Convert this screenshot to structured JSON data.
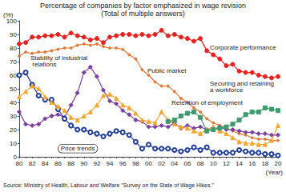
{
  "chart_data": {
    "type": "line",
    "title": "Percentage of companies by factor emphasized in wage revision",
    "subtitle": "(Total of multiple answers)",
    "x_label": "(Year)",
    "y_label": "(%)",
    "source": "Source: Ministry of Health, Labour and Welfare \"Survey on the State of Wage Hikes.\"",
    "categories": [
      "80",
      null,
      "82",
      null,
      "84",
      null,
      "86",
      null,
      "88",
      null,
      "90",
      null,
      "92",
      null,
      "94",
      null,
      "96",
      null,
      "98",
      null,
      "00",
      null,
      "02",
      null,
      "04",
      null,
      "06",
      null,
      "08",
      null,
      "10",
      null,
      "12",
      null,
      "14",
      null,
      "16",
      null,
      "18",
      null,
      "20"
    ],
    "ylim": [
      0,
      100
    ],
    "yticks": [
      0,
      10,
      20,
      30,
      40,
      50,
      60,
      70,
      80,
      90,
      100
    ],
    "grid": false,
    "series": [
      {
        "name": "Corporate performance",
        "color": "#e3231f",
        "marker": "circle",
        "values": [
          83,
          84,
          88,
          88,
          89,
          89,
          90,
          88,
          91,
          89,
          88,
          86,
          87,
          84,
          88,
          89,
          90,
          90,
          89,
          90,
          89,
          90,
          93,
          89,
          90,
          88,
          87,
          85,
          87,
          78,
          75,
          72,
          67,
          68,
          63,
          62,
          62,
          60,
          59,
          58,
          59
        ]
      },
      {
        "name": "Public market",
        "color": "#e0793a",
        "marker": "dot",
        "values": [
          74,
          77,
          76,
          77,
          77,
          78,
          79,
          80,
          80,
          82,
          83,
          82,
          83,
          81,
          80,
          80,
          79,
          75,
          72,
          64,
          60,
          55,
          52,
          52,
          48,
          43,
          40,
          36,
          33,
          28,
          25,
          23,
          21,
          19,
          17,
          16,
          14,
          13,
          13,
          12,
          12
        ]
      },
      {
        "name": "Stability of industrial relations",
        "color": "#7a3fa0",
        "marker": "diamond",
        "values": [
          33,
          24,
          23,
          24,
          28,
          30,
          31,
          29,
          38,
          47,
          62,
          66,
          59,
          49,
          41,
          39,
          34,
          31,
          27,
          26,
          22,
          22,
          23,
          22,
          25,
          21,
          23,
          21,
          22,
          20,
          20,
          22,
          20,
          20,
          19,
          18,
          18,
          17,
          17,
          16,
          16
        ]
      },
      {
        "name": "Price trends",
        "color": "#1f3c98",
        "marker": "circle-open",
        "values": [
          60,
          62,
          53,
          45,
          42,
          42,
          35,
          28,
          23,
          20,
          20,
          18,
          17,
          15,
          17,
          19,
          18,
          16,
          11,
          6,
          9,
          6,
          6,
          6,
          5,
          4,
          5,
          7,
          5,
          7,
          3,
          3,
          3,
          3,
          5,
          4,
          3,
          3,
          2,
          2,
          1
        ]
      },
      {
        "name": "Retention of employment",
        "color": "#f4a531",
        "marker": "triangle",
        "values": [
          44,
          48,
          52,
          50,
          44,
          40,
          37,
          34,
          29,
          27,
          30,
          33,
          38,
          45,
          46,
          43,
          38,
          36,
          32,
          27,
          26,
          25,
          33,
          27,
          24,
          22,
          21,
          19,
          17,
          20,
          22,
          19,
          17,
          14,
          11,
          10,
          10,
          9,
          9,
          12,
          23
        ]
      },
      {
        "name": "Securing and retaining a workforce",
        "color": "#3f9a6e",
        "marker": "square",
        "values": [
          null,
          null,
          null,
          null,
          null,
          null,
          null,
          null,
          null,
          null,
          null,
          null,
          null,
          null,
          null,
          null,
          null,
          null,
          null,
          null,
          null,
          null,
          null,
          26,
          27,
          30,
          32,
          33,
          29,
          19,
          20,
          21,
          22,
          24,
          27,
          31,
          33,
          33,
          36,
          35,
          34
        ]
      }
    ]
  }
}
